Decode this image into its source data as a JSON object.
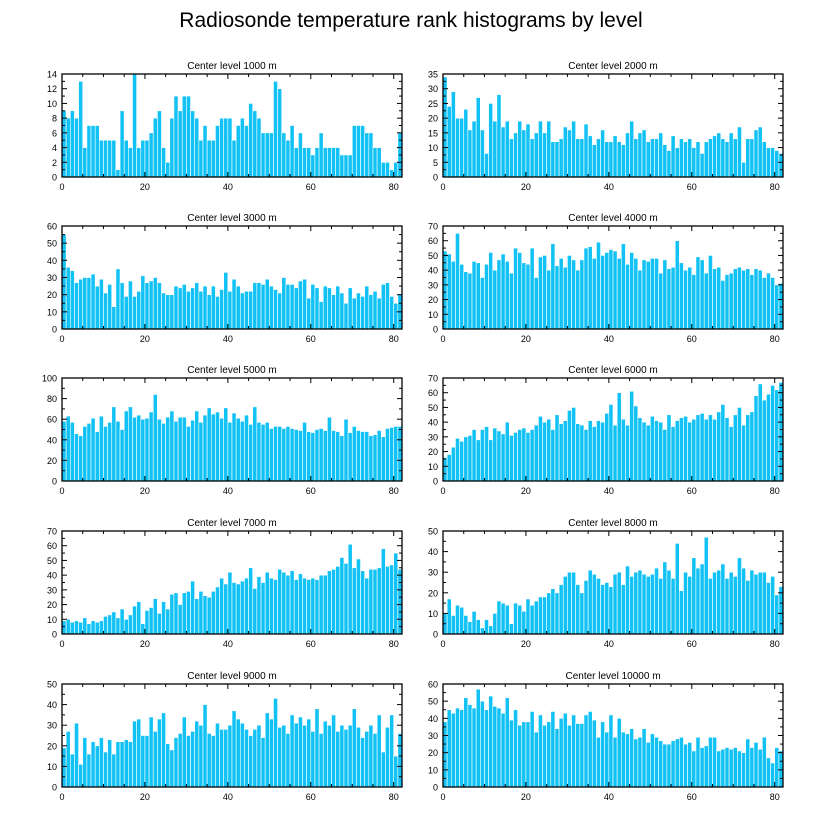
{
  "figure": {
    "title": "Radiosonde temperature rank histograms by level",
    "bar_color": "#13c2f4",
    "bar_edge_color": "#ffffff",
    "axis_color": "#000000"
  },
  "chart_data": [
    {
      "type": "bar",
      "title": "Center level 1000 m",
      "ylim": [
        0,
        14
      ],
      "yticks": [
        0,
        2,
        4,
        6,
        8,
        10,
        12,
        14
      ],
      "xlim": [
        0,
        82
      ],
      "xticks": [
        0,
        20,
        40,
        60,
        80
      ],
      "x_start": 0,
      "values": [
        9,
        8,
        9,
        8,
        13,
        4,
        7,
        7,
        7,
        5,
        5,
        5,
        5,
        1,
        9,
        5,
        4,
        14,
        4,
        5,
        5,
        6,
        8,
        9,
        4,
        2,
        8,
        11,
        9,
        11,
        11,
        9,
        8,
        5,
        7,
        5,
        5,
        7,
        8,
        8,
        8,
        5,
        7,
        8,
        7,
        10,
        9,
        8,
        6,
        6,
        6,
        13,
        12,
        6,
        5,
        7,
        4,
        6,
        4,
        4,
        3,
        4,
        6,
        4,
        4,
        4,
        4,
        3,
        3,
        3,
        7,
        7,
        7,
        6,
        6,
        4,
        4,
        2,
        2,
        1,
        2,
        6
      ]
    },
    {
      "type": "bar",
      "title": "Center level 2000 m",
      "ylim": [
        0,
        35
      ],
      "yticks": [
        0,
        5,
        10,
        15,
        20,
        25,
        30,
        35
      ],
      "xlim": [
        0,
        82
      ],
      "xticks": [
        0,
        20,
        40,
        60,
        80
      ],
      "x_start": 0,
      "values": [
        34,
        24,
        29,
        20,
        20,
        23,
        16,
        19,
        27,
        16,
        8,
        25,
        19,
        28,
        17,
        19,
        13,
        15,
        19,
        16,
        18,
        13,
        15,
        19,
        15,
        19,
        12,
        12,
        13,
        17,
        16,
        19,
        13,
        13,
        18,
        14,
        11,
        13,
        16,
        12,
        12,
        14,
        12,
        11,
        15,
        19,
        13,
        15,
        16,
        12,
        13,
        13,
        15,
        11,
        9,
        14,
        10,
        13,
        12,
        13,
        10,
        12,
        8,
        12,
        13,
        14,
        15,
        13,
        12,
        15,
        13,
        17,
        5,
        13,
        13,
        16,
        17,
        12,
        10,
        10,
        9,
        8
      ]
    },
    {
      "type": "bar",
      "title": "Center level 3000 m",
      "ylim": [
        0,
        60
      ],
      "yticks": [
        0,
        10,
        20,
        30,
        40,
        50,
        60
      ],
      "xlim": [
        0,
        82
      ],
      "xticks": [
        0,
        20,
        40,
        60,
        80
      ],
      "x_start": 0,
      "values": [
        55,
        36,
        34,
        27,
        29,
        30,
        30,
        32,
        25,
        29,
        21,
        26,
        13,
        35,
        27,
        19,
        28,
        19,
        22,
        31,
        27,
        28,
        30,
        27,
        21,
        20,
        20,
        25,
        24,
        26,
        22,
        24,
        27,
        22,
        25,
        20,
        25,
        19,
        23,
        33,
        22,
        29,
        25,
        21,
        22,
        22,
        27,
        27,
        26,
        29,
        25,
        23,
        21,
        30,
        26,
        26,
        24,
        28,
        29,
        18,
        26,
        24,
        16,
        25,
        24,
        20,
        25,
        21,
        15,
        24,
        18,
        21,
        19,
        25,
        20,
        22,
        18,
        26,
        27,
        19,
        15,
        20
      ]
    },
    {
      "type": "bar",
      "title": "Center level 4000 m",
      "ylim": [
        0,
        70
      ],
      "yticks": [
        0,
        10,
        20,
        30,
        40,
        50,
        60,
        70
      ],
      "xlim": [
        0,
        82
      ],
      "xticks": [
        0,
        20,
        40,
        60,
        80
      ],
      "x_start": 0,
      "values": [
        53,
        51,
        46,
        65,
        44,
        39,
        38,
        46,
        45,
        35,
        44,
        52,
        40,
        47,
        51,
        46,
        38,
        55,
        52,
        45,
        44,
        55,
        35,
        49,
        50,
        40,
        58,
        43,
        48,
        42,
        50,
        47,
        40,
        47,
        55,
        56,
        48,
        59,
        50,
        52,
        54,
        53,
        48,
        58,
        44,
        52,
        48,
        40,
        47,
        46,
        48,
        48,
        38,
        47,
        41,
        42,
        60,
        45,
        40,
        42,
        37,
        49,
        47,
        38,
        50,
        41,
        42,
        33,
        37,
        38,
        41,
        42,
        40,
        41,
        37,
        41,
        40,
        35,
        38,
        35,
        30,
        31
      ]
    },
    {
      "type": "bar",
      "title": "Center level 5000 m",
      "ylim": [
        0,
        100
      ],
      "yticks": [
        0,
        20,
        40,
        60,
        80,
        100
      ],
      "xlim": [
        0,
        82
      ],
      "xticks": [
        0,
        20,
        40,
        60,
        80
      ],
      "x_start": 0,
      "values": [
        58,
        63,
        57,
        46,
        44,
        53,
        56,
        61,
        48,
        63,
        53,
        57,
        72,
        58,
        50,
        68,
        72,
        62,
        64,
        60,
        61,
        67,
        84,
        60,
        56,
        62,
        68,
        58,
        62,
        62,
        53,
        59,
        68,
        57,
        64,
        71,
        65,
        67,
        61,
        71,
        57,
        66,
        61,
        58,
        64,
        55,
        72,
        57,
        55,
        57,
        51,
        53,
        53,
        51,
        53,
        51,
        50,
        49,
        57,
        48,
        47,
        50,
        51,
        49,
        62,
        49,
        48,
        44,
        60,
        47,
        53,
        49,
        48,
        48,
        44,
        45,
        49,
        43,
        51,
        52,
        53,
        53
      ]
    },
    {
      "type": "bar",
      "title": "Center level 6000 m",
      "ylim": [
        0,
        70
      ],
      "yticks": [
        0,
        10,
        20,
        30,
        40,
        50,
        60,
        70
      ],
      "xlim": [
        0,
        82
      ],
      "xticks": [
        0,
        20,
        40,
        60,
        80
      ],
      "x_start": 0,
      "values": [
        16,
        18,
        23,
        29,
        27,
        30,
        31,
        35,
        28,
        35,
        37,
        28,
        36,
        34,
        32,
        40,
        31,
        33,
        35,
        36,
        33,
        35,
        38,
        44,
        40,
        42,
        35,
        45,
        39,
        41,
        48,
        50,
        39,
        38,
        35,
        41,
        37,
        41,
        40,
        46,
        52,
        38,
        60,
        42,
        38,
        61,
        51,
        43,
        40,
        38,
        44,
        41,
        40,
        35,
        45,
        37,
        41,
        43,
        44,
        40,
        42,
        45,
        46,
        42,
        45,
        42,
        47,
        52,
        43,
        37,
        45,
        50,
        38,
        45,
        47,
        58,
        66,
        55,
        59,
        65,
        62,
        67
      ]
    },
    {
      "type": "bar",
      "title": "Center level 7000 m",
      "ylim": [
        0,
        70
      ],
      "yticks": [
        0,
        10,
        20,
        30,
        40,
        50,
        60,
        70
      ],
      "xlim": [
        0,
        82
      ],
      "xticks": [
        0,
        20,
        40,
        60,
        80
      ],
      "x_start": 0,
      "values": [
        9,
        10,
        8,
        9,
        8,
        11,
        7,
        9,
        8,
        9,
        12,
        13,
        15,
        11,
        17,
        10,
        13,
        19,
        22,
        7,
        16,
        18,
        24,
        14,
        22,
        17,
        27,
        28,
        20,
        28,
        29,
        36,
        24,
        29,
        26,
        25,
        29,
        32,
        38,
        34,
        42,
        35,
        34,
        36,
        38,
        45,
        31,
        39,
        35,
        42,
        38,
        37,
        44,
        42,
        40,
        43,
        37,
        41,
        38,
        37,
        38,
        37,
        40,
        40,
        43,
        44,
        46,
        52,
        48,
        61,
        45,
        51,
        43,
        38,
        44,
        44,
        45,
        58,
        46,
        47,
        55,
        44
      ]
    },
    {
      "type": "bar",
      "title": "Center level 8000 m",
      "ylim": [
        0,
        50
      ],
      "yticks": [
        0,
        10,
        20,
        30,
        40,
        50
      ],
      "xlim": [
        0,
        82
      ],
      "xticks": [
        0,
        20,
        40,
        60,
        80
      ],
      "x_start": 0,
      "values": [
        10,
        17,
        9,
        14,
        13,
        9,
        6,
        11,
        7,
        3,
        7,
        4,
        10,
        16,
        15,
        14,
        5,
        15,
        14,
        11,
        17,
        14,
        16,
        18,
        18,
        20,
        22,
        20,
        24,
        28,
        30,
        30,
        24,
        20,
        26,
        31,
        29,
        27,
        24,
        25,
        23,
        29,
        30,
        24,
        33,
        28,
        30,
        31,
        29,
        28,
        29,
        32,
        27,
        35,
        31,
        27,
        44,
        21,
        30,
        28,
        37,
        32,
        34,
        47,
        27,
        30,
        31,
        34,
        27,
        30,
        28,
        37,
        32,
        26,
        31,
        29,
        30,
        30,
        25,
        28,
        19,
        23
      ]
    },
    {
      "type": "bar",
      "title": "Center level 9000 m",
      "ylim": [
        0,
        50
      ],
      "yticks": [
        0,
        10,
        20,
        30,
        40,
        50
      ],
      "xlim": [
        0,
        82
      ],
      "xticks": [
        0,
        20,
        40,
        60,
        80
      ],
      "x_start": 0,
      "values": [
        19,
        27,
        16,
        31,
        11,
        24,
        16,
        22,
        20,
        24,
        17,
        23,
        16,
        22,
        22,
        23,
        22,
        32,
        33,
        25,
        25,
        34,
        27,
        33,
        36,
        21,
        18,
        24,
        26,
        34,
        25,
        27,
        32,
        30,
        40,
        26,
        25,
        31,
        28,
        28,
        30,
        37,
        33,
        31,
        28,
        25,
        28,
        30,
        24,
        36,
        33,
        43,
        29,
        30,
        26,
        35,
        31,
        34,
        30,
        33,
        27,
        38,
        26,
        32,
        30,
        35,
        27,
        30,
        28,
        30,
        38,
        29,
        24,
        27,
        30,
        26,
        35,
        17,
        29,
        35,
        15,
        26
      ]
    },
    {
      "type": "bar",
      "title": "Center level 10000 m",
      "ylim": [
        0,
        60
      ],
      "yticks": [
        0,
        10,
        20,
        30,
        40,
        50,
        60
      ],
      "xlim": [
        0,
        82
      ],
      "xticks": [
        0,
        20,
        40,
        60,
        80
      ],
      "x_start": 0,
      "values": [
        38,
        45,
        43,
        46,
        45,
        52,
        48,
        46,
        57,
        50,
        45,
        53,
        47,
        46,
        43,
        52,
        39,
        45,
        36,
        38,
        38,
        44,
        32,
        42,
        36,
        38,
        44,
        34,
        40,
        43,
        36,
        42,
        37,
        37,
        42,
        44,
        39,
        29,
        38,
        32,
        42,
        29,
        40,
        32,
        31,
        34,
        28,
        29,
        34,
        26,
        31,
        29,
        27,
        25,
        25,
        27,
        28,
        29,
        25,
        26,
        21,
        29,
        23,
        24,
        29,
        29,
        21,
        22,
        23,
        22,
        23,
        21,
        20,
        28,
        23,
        26,
        22,
        29,
        17,
        14,
        23,
        21
      ]
    }
  ]
}
